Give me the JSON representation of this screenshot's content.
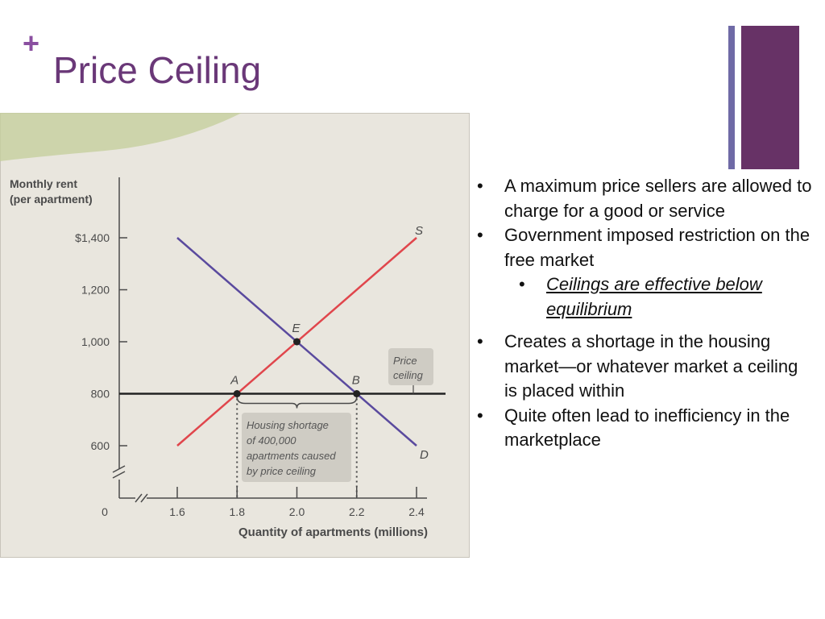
{
  "slide": {
    "plus": "+",
    "title": "Price Ceiling",
    "accent_colors": {
      "title": "#6a3878",
      "bar_thin": "#6f6aa6",
      "bar_thick": "#673266"
    }
  },
  "bullets": [
    {
      "text": "A maximum price sellers are allowed to charge for a good or service"
    },
    {
      "text": "Government imposed restriction on the free market"
    },
    {
      "text": "Creates a shortage in the housing market—or whatever market a ceiling is placed within"
    },
    {
      "text": "Quite often lead to inefficiency in the marketplace"
    }
  ],
  "sub_bullets": [
    {
      "text": "Ceilings are effective below equilibrium"
    }
  ],
  "chart_data": {
    "type": "line",
    "title": "",
    "ylabel": "Monthly rent (per apartment)",
    "xlabel": "Quantity of apartments (millions)",
    "xlim": [
      1.6,
      2.4
    ],
    "ylim": [
      600,
      1400
    ],
    "x_ticks": [
      {
        "v": 1.6,
        "label": "1.6"
      },
      {
        "v": 1.8,
        "label": "1.8"
      },
      {
        "v": 2.0,
        "label": "2.0"
      },
      {
        "v": 2.2,
        "label": "2.2"
      },
      {
        "v": 2.4,
        "label": "2.4"
      }
    ],
    "y_ticks": [
      {
        "v": 600,
        "label": "600"
      },
      {
        "v": 800,
        "label": "800"
      },
      {
        "v": 1000,
        "label": "1,000"
      },
      {
        "v": 1200,
        "label": "1,200"
      },
      {
        "v": 1400,
        "label": "$1,400"
      }
    ],
    "origin_label": "0",
    "series": [
      {
        "name": "S",
        "color": "#e0464c",
        "points": [
          [
            1.6,
            600
          ],
          [
            2.4,
            1400
          ]
        ]
      },
      {
        "name": "D",
        "color": "#5a4a9e",
        "points": [
          [
            1.6,
            1400
          ],
          [
            2.4,
            600
          ]
        ]
      }
    ],
    "ceiling": {
      "value": 800,
      "label_lines": [
        "Price",
        "ceiling"
      ],
      "color": "#222222"
    },
    "points": [
      {
        "label": "A",
        "x": 1.8,
        "y": 800
      },
      {
        "label": "E",
        "x": 2.0,
        "y": 1000
      },
      {
        "label": "B",
        "x": 2.2,
        "y": 800
      }
    ],
    "annotation": {
      "lines": [
        "Housing shortage",
        "of 400,000",
        "apartments caused",
        "by price ceiling"
      ],
      "x_from": 1.8,
      "x_to": 2.2
    },
    "grid": false
  }
}
